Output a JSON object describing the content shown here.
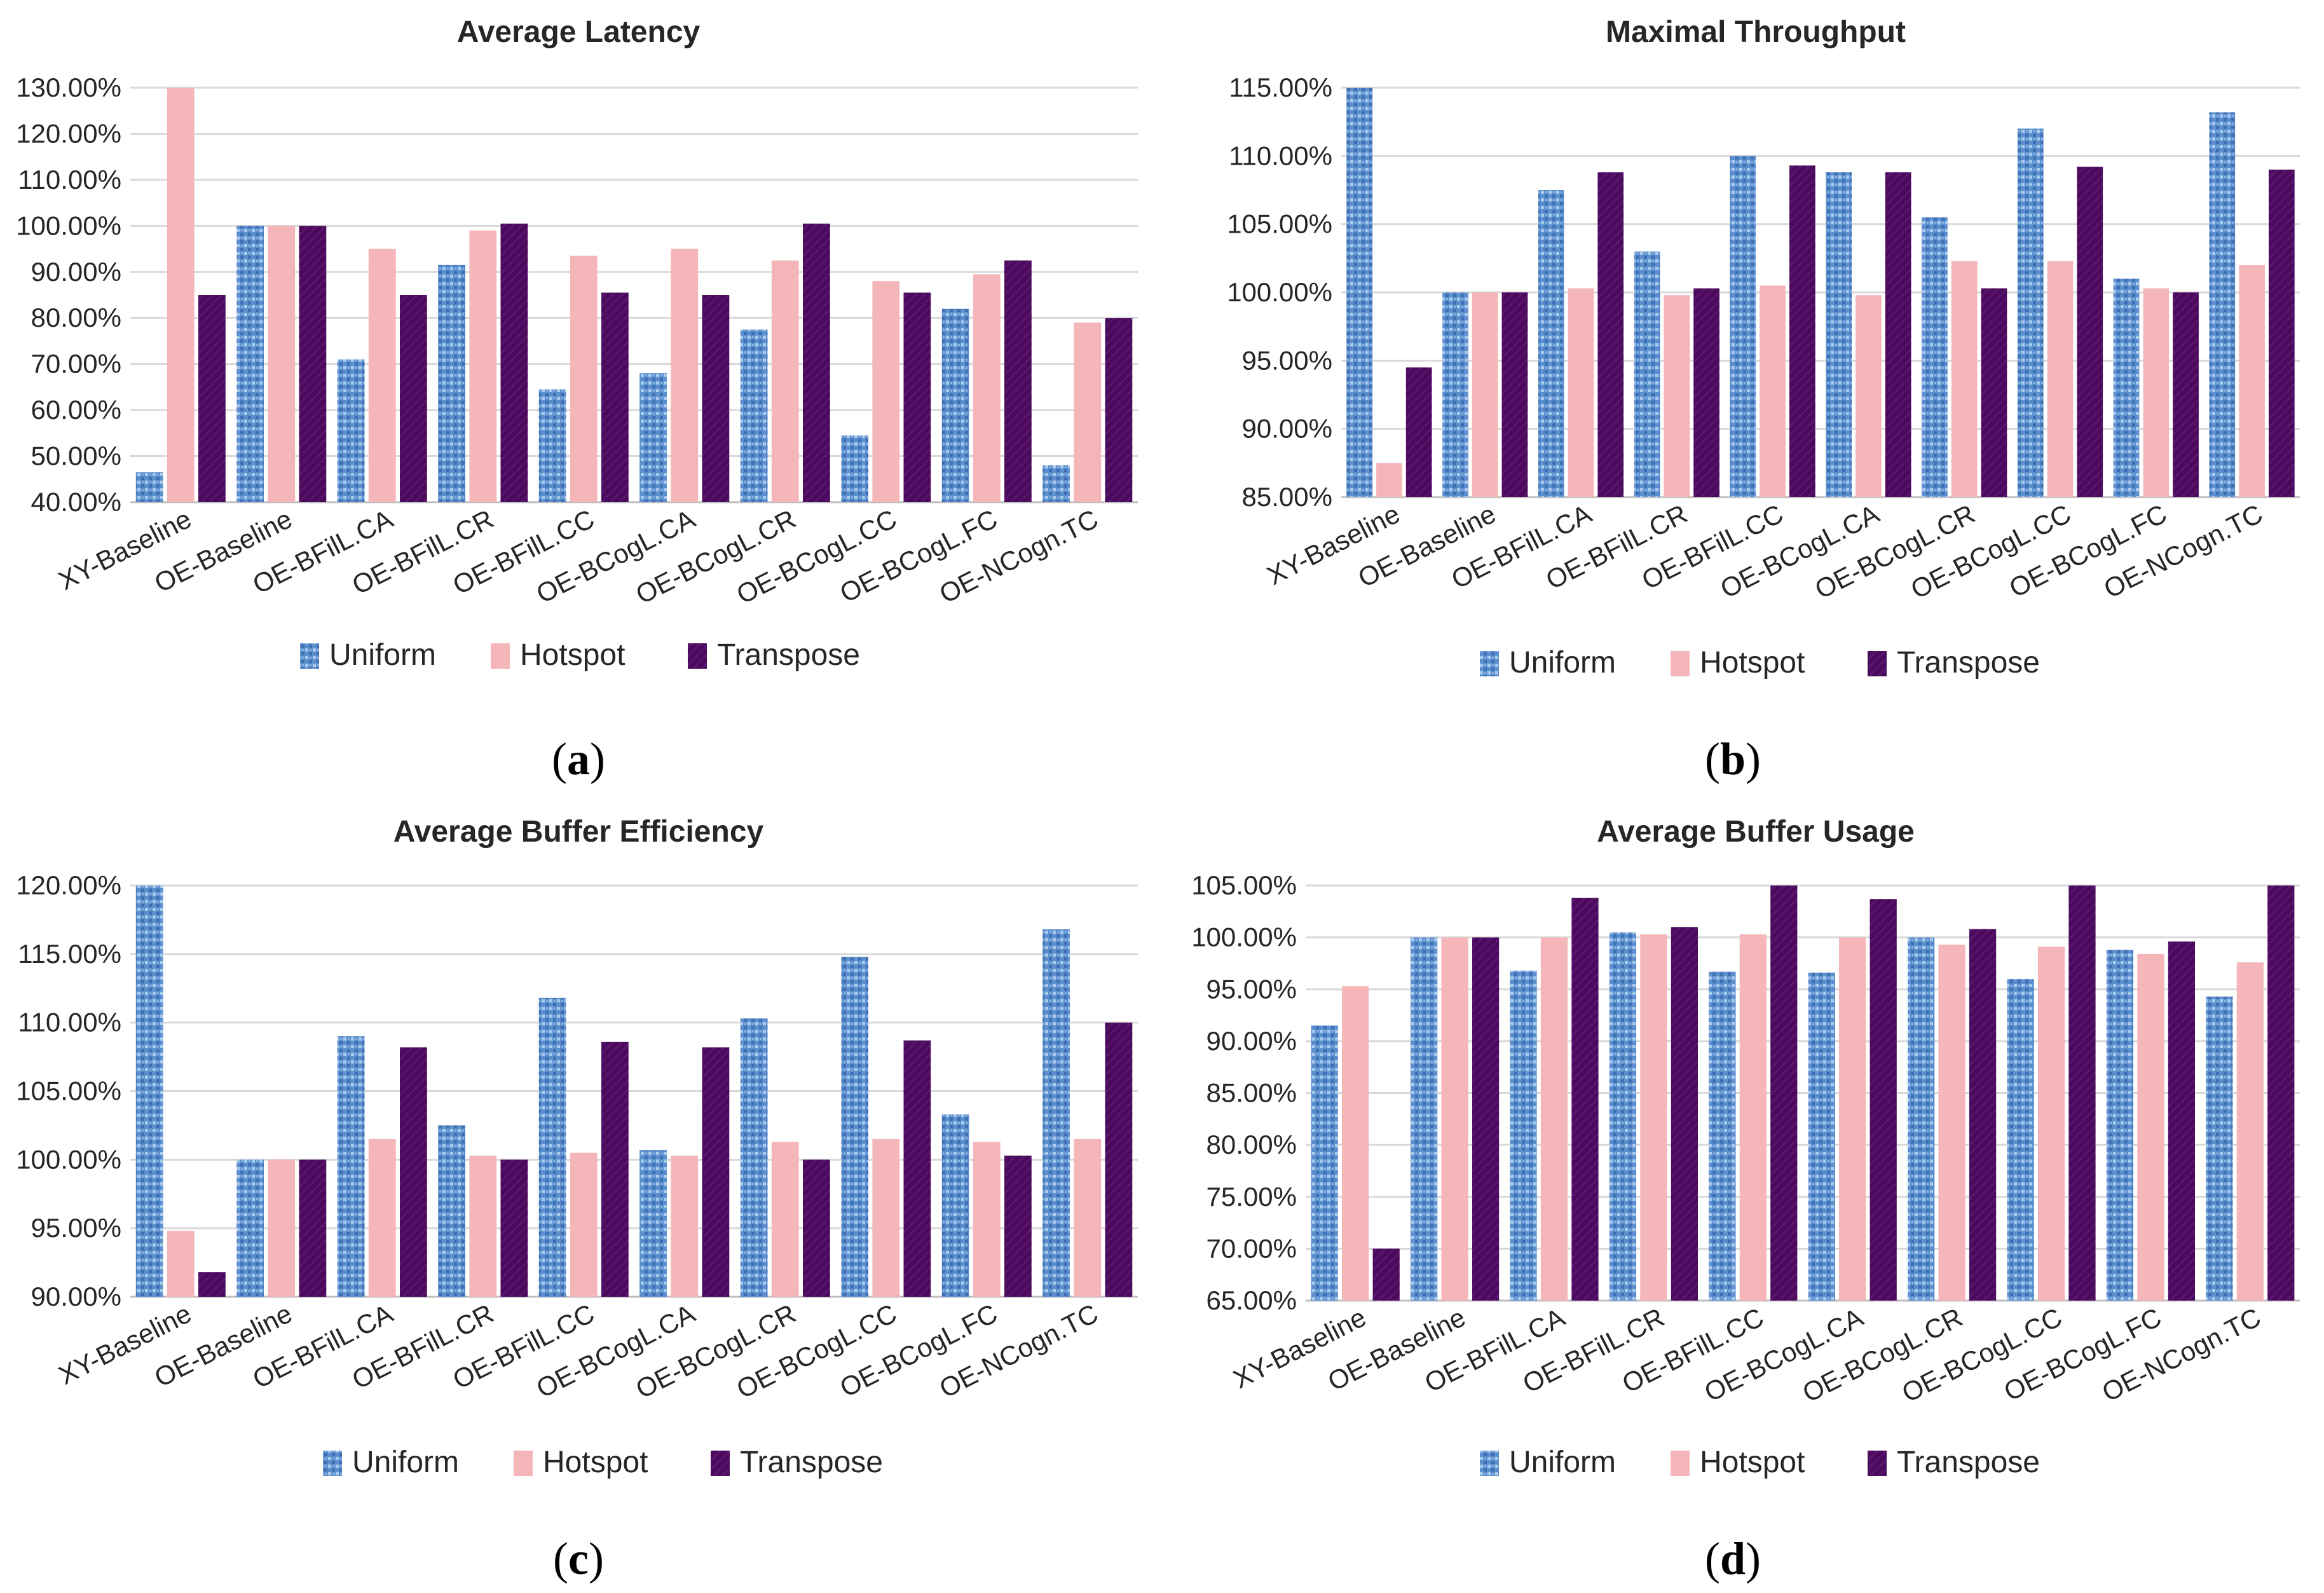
{
  "colors": {
    "uniform": "#4f81bd",
    "uniform_light": "#9dc3e6",
    "hotspot": "#f4b6b8",
    "transpose": "#4b0a5c"
  },
  "legend": [
    "Uniform",
    "Hotspot",
    "Transpose"
  ],
  "chart_data": [
    {
      "type": "bar",
      "title": "Average Latency",
      "caption": "a",
      "categories": [
        "XY-Baseline",
        "OE-Baseline",
        "OE-BFilL.CA",
        "OE-BFilL.CR",
        "OE-BFilL.CC",
        "OE-BCogL.CA",
        "OE-BCogL.CR",
        "OE-BCogL.CC",
        "OE-BCogL.FC",
        "OE-NCogn.TC"
      ],
      "series": [
        {
          "name": "Uniform",
          "values": [
            46.5,
            100,
            71,
            91.5,
            64.5,
            68,
            77.5,
            54.5,
            82,
            48
          ]
        },
        {
          "name": "Hotspot",
          "values": [
            130,
            100,
            95,
            99,
            93.5,
            95,
            92.5,
            88,
            89.5,
            79
          ]
        },
        {
          "name": "Transpose",
          "values": [
            85,
            100,
            85,
            100.5,
            85.5,
            85,
            100.5,
            85.5,
            92.5,
            80
          ]
        }
      ],
      "ylim": [
        40,
        130
      ],
      "yticks": [
        "130.00%",
        "120.00%",
        "110.00%",
        "100.00%",
        "90.00%",
        "80.00%",
        "70.00%",
        "60.00%",
        "50.00%",
        "40.00%"
      ],
      "xlabel": "",
      "ylabel": ""
    },
    {
      "type": "bar",
      "title": "Maximal Throughput",
      "caption": "b",
      "categories": [
        "XY-Baseline",
        "OE-Baseline",
        "OE-BFilL.CA",
        "OE-BFilL.CR",
        "OE-BFilL.CC",
        "OE-BCogL.CA",
        "OE-BCogL.CR",
        "OE-BCogL.CC",
        "OE-BCogL.FC",
        "OE-NCogn.TC"
      ],
      "series": [
        {
          "name": "Uniform",
          "values": [
            115,
            100,
            107.5,
            103,
            110,
            108.8,
            105.5,
            112,
            101,
            113.2
          ]
        },
        {
          "name": "Hotspot",
          "values": [
            87.5,
            100,
            100.3,
            99.8,
            100.5,
            99.8,
            102.3,
            102.3,
            100.3,
            102
          ]
        },
        {
          "name": "Transpose",
          "values": [
            94.5,
            100,
            108.8,
            100.3,
            109.3,
            108.8,
            100.3,
            109.2,
            100,
            109
          ]
        }
      ],
      "ylim": [
        85,
        115
      ],
      "yticks": [
        "115.00%",
        "110.00%",
        "105.00%",
        "100.00%",
        "95.00%",
        "90.00%",
        "85.00%"
      ],
      "xlabel": "",
      "ylabel": ""
    },
    {
      "type": "bar",
      "title": "Average Buffer Efficiency",
      "caption": "c",
      "categories": [
        "XY-Baseline",
        "OE-Baseline",
        "OE-BFilL.CA",
        "OE-BFilL.CR",
        "OE-BFilL.CC",
        "OE-BCogL.CA",
        "OE-BCogL.CR",
        "OE-BCogL.CC",
        "OE-BCogL.FC",
        "OE-NCogn.TC"
      ],
      "series": [
        {
          "name": "Uniform",
          "values": [
            120,
            100,
            109,
            102.5,
            111.8,
            100.7,
            110.3,
            114.8,
            103.3,
            116.8
          ]
        },
        {
          "name": "Hotspot",
          "values": [
            94.8,
            100,
            101.5,
            100.3,
            100.5,
            100.3,
            101.3,
            101.5,
            101.3,
            101.5
          ]
        },
        {
          "name": "Transpose",
          "values": [
            91.8,
            100,
            108.2,
            100,
            108.6,
            108.2,
            100,
            108.7,
            100.3,
            110
          ]
        }
      ],
      "ylim": [
        90,
        120
      ],
      "yticks": [
        "120.00%",
        "115.00%",
        "110.00%",
        "105.00%",
        "100.00%",
        "95.00%",
        "90.00%"
      ],
      "xlabel": "",
      "ylabel": ""
    },
    {
      "type": "bar",
      "title": "Average Buffer Usage",
      "caption": "d",
      "categories": [
        "XY-Baseline",
        "OE-Baseline",
        "OE-BFilL.CA",
        "OE-BFilL.CR",
        "OE-BFilL.CC",
        "OE-BCogL.CA",
        "OE-BCogL.CR",
        "OE-BCogL.CC",
        "OE-BCogL.FC",
        "OE-NCogn.TC"
      ],
      "series": [
        {
          "name": "Uniform",
          "values": [
            91.5,
            100,
            96.8,
            100.5,
            96.7,
            96.6,
            100,
            96,
            98.8,
            94.3
          ]
        },
        {
          "name": "Hotspot",
          "values": [
            95.3,
            100,
            100,
            100.3,
            100.3,
            100,
            99.3,
            99.1,
            98.4,
            97.6
          ]
        },
        {
          "name": "Transpose",
          "values": [
            70,
            100,
            103.8,
            101,
            105,
            103.7,
            100.8,
            105,
            99.6,
            105
          ]
        }
      ],
      "ylim": [
        65,
        105
      ],
      "yticks": [
        "105.00%",
        "100.00%",
        "95.00%",
        "90.00%",
        "85.00%",
        "80.00%",
        "75.00%",
        "70.00%",
        "65.00%"
      ],
      "xlabel": "",
      "ylabel": ""
    }
  ]
}
